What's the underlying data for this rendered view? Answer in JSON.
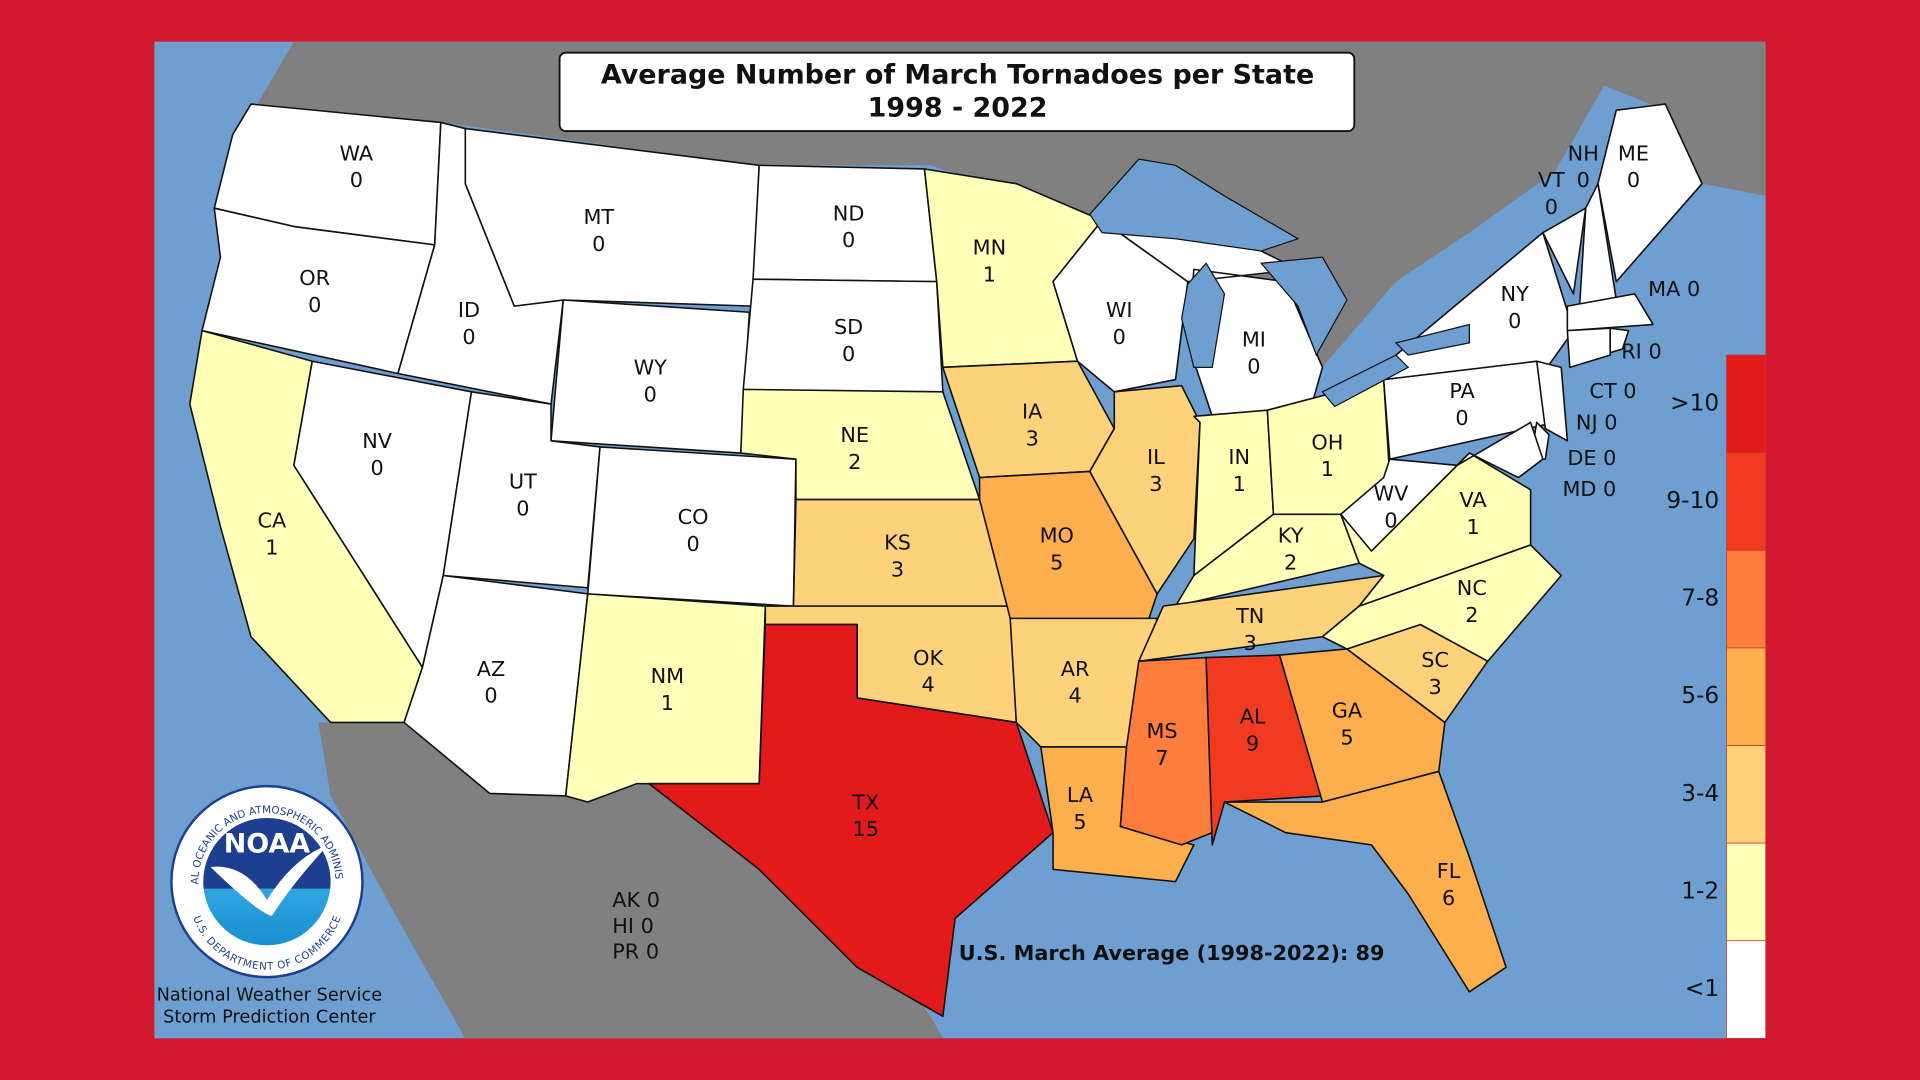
{
  "title": "Average Number of March Tornadoes per State",
  "subtitle": "1998 - 2022",
  "states": [
    {
      "abbr": "WA",
      "value": 0
    },
    {
      "abbr": "OR",
      "value": 0
    },
    {
      "abbr": "CA",
      "value": 1
    },
    {
      "abbr": "NV",
      "value": 0
    },
    {
      "abbr": "ID",
      "value": 0
    },
    {
      "abbr": "MT",
      "value": 0
    },
    {
      "abbr": "WY",
      "value": 0
    },
    {
      "abbr": "UT",
      "value": 0
    },
    {
      "abbr": "CO",
      "value": 0
    },
    {
      "abbr": "AZ",
      "value": 0
    },
    {
      "abbr": "NM",
      "value": 1
    },
    {
      "abbr": "ND",
      "value": 0
    },
    {
      "abbr": "SD",
      "value": 0
    },
    {
      "abbr": "NE",
      "value": 2
    },
    {
      "abbr": "KS",
      "value": 3
    },
    {
      "abbr": "OK",
      "value": 4
    },
    {
      "abbr": "TX",
      "value": 15
    },
    {
      "abbr": "MN",
      "value": 1
    },
    {
      "abbr": "IA",
      "value": 3
    },
    {
      "abbr": "MO",
      "value": 5
    },
    {
      "abbr": "AR",
      "value": 4
    },
    {
      "abbr": "LA",
      "value": 5
    },
    {
      "abbr": "WI",
      "value": 0
    },
    {
      "abbr": "IL",
      "value": 3
    },
    {
      "abbr": "MI",
      "value": 0
    },
    {
      "abbr": "IN",
      "value": 1
    },
    {
      "abbr": "OH",
      "value": 1
    },
    {
      "abbr": "KY",
      "value": 2
    },
    {
      "abbr": "TN",
      "value": 3
    },
    {
      "abbr": "MS",
      "value": 7
    },
    {
      "abbr": "AL",
      "value": 9
    },
    {
      "abbr": "GA",
      "value": 5
    },
    {
      "abbr": "FL",
      "value": 6
    },
    {
      "abbr": "SC",
      "value": 3
    },
    {
      "abbr": "NC",
      "value": 2
    },
    {
      "abbr": "VA",
      "value": 1
    },
    {
      "abbr": "WV",
      "value": 0
    },
    {
      "abbr": "PA",
      "value": 0
    },
    {
      "abbr": "NY",
      "value": 0
    },
    {
      "abbr": "VT",
      "value": 0
    },
    {
      "abbr": "NH",
      "value": 0
    },
    {
      "abbr": "ME",
      "value": 0
    },
    {
      "abbr": "MA",
      "value": 0
    },
    {
      "abbr": "CT",
      "value": 0
    },
    {
      "abbr": "RI",
      "value": 0
    },
    {
      "abbr": "NJ",
      "value": 0
    },
    {
      "abbr": "DE",
      "value": 0
    },
    {
      "abbr": "MD",
      "value": 0
    }
  ],
  "territories": [
    {
      "abbr": "AK",
      "value": 0
    },
    {
      "abbr": "HI",
      "value": 0
    },
    {
      "abbr": "PR",
      "value": 0
    }
  ],
  "average": {
    "label": "U.S. March Average (1998-2022):",
    "value": 89
  },
  "legend": [
    {
      "label": ">10",
      "color": "#e31a1c"
    },
    {
      "label": "9-10",
      "color": "#f03b20"
    },
    {
      "label": "7-8",
      "color": "#fd7e3c"
    },
    {
      "label": "5-6",
      "color": "#fdae4d"
    },
    {
      "label": "3-4",
      "color": "#fed27a"
    },
    {
      "label": "1-2",
      "color": "#ffffb8"
    },
    {
      "label": "<1",
      "color": "#ffffff"
    }
  ],
  "credits": [
    "National Weather Service",
    "Storm Prediction Center"
  ],
  "logo": {
    "name": "NOAA",
    "ring_top": "NATIONAL OCEANIC AND ATMOSPHERIC ADMINISTRATION",
    "ring_bottom": "U.S. DEPARTMENT OF COMMERCE"
  }
}
